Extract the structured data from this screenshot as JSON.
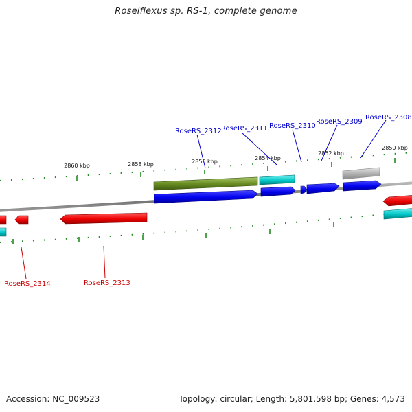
{
  "title": "Roseiflexus sp. RS-1, complete genome",
  "footer": {
    "accession": "Accession: NC_009523",
    "summary": "Topology: circular; Length: 5,801,598 bp; Genes: 4,573"
  },
  "colors": {
    "forward_cds": "#0000ee",
    "reverse_cds": "#ee0000",
    "olive_feature": "#6b8e23",
    "cyan_feature": "#00c8c8",
    "gray_feature": "#b4b4b4",
    "backbone": "#777777",
    "tick": "#228b22",
    "forward_label": "#0000cc",
    "reverse_label": "#cc0000"
  },
  "ruler_labels": [
    "2860 kbp",
    "2858 kbp",
    "2856 kbp",
    "2854 kbp",
    "2852 kbp",
    "2850 kbp"
  ],
  "gene_labels_forward": [
    "RoseRS_2312",
    "RoseRS_2311",
    "RoseRS_2310",
    "RoseRS_2309",
    "RoseRS_2308"
  ],
  "gene_labels_reverse": [
    "RoseRS_2314",
    "RoseRS_2313"
  ]
}
